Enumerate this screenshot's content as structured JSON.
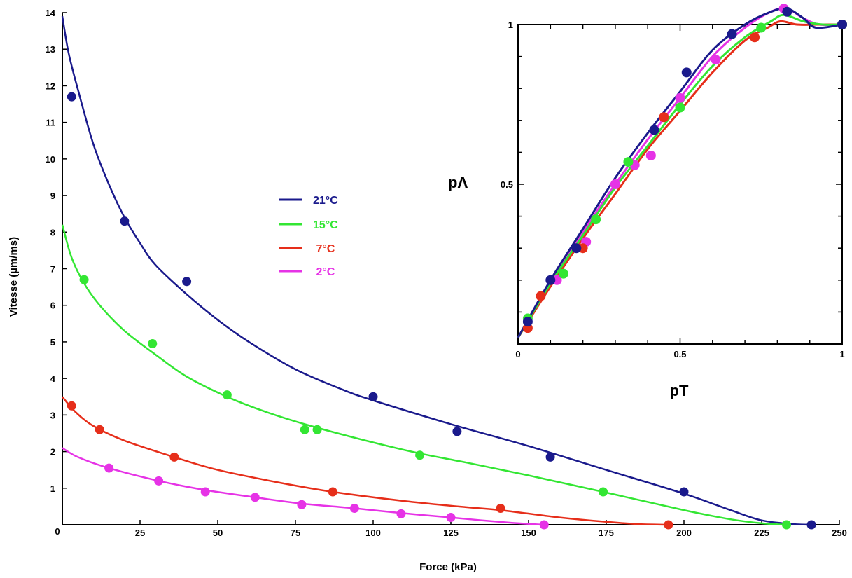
{
  "chart_data": [
    {
      "type": "line",
      "xlabel": "Force (kPa)",
      "ylabel": "Vitesse (µm/ms)",
      "xlim": [
        0,
        250
      ],
      "ylim": [
        0,
        14
      ],
      "x_ticks": [
        0,
        25,
        50,
        75,
        100,
        125,
        150,
        175,
        200,
        225,
        250
      ],
      "y_ticks": [
        1,
        2,
        3,
        4,
        5,
        6,
        7,
        8,
        9,
        10,
        11,
        12,
        13,
        14
      ],
      "x_tick_labels": [
        "0",
        "25",
        "50",
        "75",
        "100",
        "125",
        "150",
        "175",
        "200",
        "225",
        "250"
      ],
      "y_tick_labels": [
        "1",
        "2",
        "3",
        "4",
        "5",
        "6",
        "7",
        "8",
        "9",
        "10",
        "11",
        "12",
        "13",
        "14"
      ],
      "legend_position": "center",
      "series": [
        {
          "name": "21°C",
          "color": "#1a1a8c",
          "points": [
            [
              3,
              11.7
            ],
            [
              20,
              8.3
            ],
            [
              40,
              6.65
            ],
            [
              100,
              3.5
            ],
            [
              127,
              2.55
            ],
            [
              157,
              1.85
            ],
            [
              200,
              0.9
            ],
            [
              241,
              0.0
            ]
          ],
          "curve": [
            [
              0,
              13.9
            ],
            [
              2,
              12.9
            ],
            [
              5,
              11.9
            ],
            [
              10,
              10.4
            ],
            [
              15,
              9.3
            ],
            [
              20,
              8.4
            ],
            [
              25,
              7.7
            ],
            [
              30,
              7.1
            ],
            [
              40,
              6.3
            ],
            [
              50,
              5.6
            ],
            [
              60,
              5.0
            ],
            [
              75,
              4.25
            ],
            [
              90,
              3.7
            ],
            [
              100,
              3.4
            ],
            [
              125,
              2.75
            ],
            [
              150,
              2.15
            ],
            [
              175,
              1.5
            ],
            [
              200,
              0.85
            ],
            [
              215,
              0.4
            ],
            [
              225,
              0.12
            ],
            [
              235,
              0.02
            ],
            [
              241,
              0.0
            ]
          ]
        },
        {
          "name": "15°C",
          "color": "#33e633",
          "points": [
            [
              7,
              6.7
            ],
            [
              29,
              4.95
            ],
            [
              53,
              3.55
            ],
            [
              78,
              2.6
            ],
            [
              82,
              2.6
            ],
            [
              115,
              1.9
            ],
            [
              174,
              0.9
            ],
            [
              233,
              0.0
            ]
          ],
          "curve": [
            [
              0,
              8.2
            ],
            [
              3,
              7.3
            ],
            [
              7,
              6.6
            ],
            [
              12,
              6.0
            ],
            [
              20,
              5.3
            ],
            [
              30,
              4.65
            ],
            [
              40,
              4.05
            ],
            [
              53,
              3.5
            ],
            [
              65,
              3.1
            ],
            [
              80,
              2.7
            ],
            [
              100,
              2.25
            ],
            [
              115,
              1.95
            ],
            [
              130,
              1.7
            ],
            [
              150,
              1.35
            ],
            [
              174,
              0.9
            ],
            [
              200,
              0.4
            ],
            [
              215,
              0.15
            ],
            [
              225,
              0.04
            ],
            [
              233,
              0.0
            ]
          ]
        },
        {
          "name": "7°C",
          "color": "#e62e1a",
          "points": [
            [
              3,
              3.25
            ],
            [
              12,
              2.6
            ],
            [
              36,
              1.85
            ],
            [
              87,
              0.9
            ],
            [
              141,
              0.45
            ],
            [
              195,
              0.0
            ]
          ],
          "curve": [
            [
              0,
              3.5
            ],
            [
              4,
              3.1
            ],
            [
              10,
              2.7
            ],
            [
              20,
              2.3
            ],
            [
              36,
              1.85
            ],
            [
              50,
              1.5
            ],
            [
              70,
              1.15
            ],
            [
              87,
              0.9
            ],
            [
              110,
              0.65
            ],
            [
              130,
              0.48
            ],
            [
              141,
              0.4
            ],
            [
              160,
              0.2
            ],
            [
              175,
              0.08
            ],
            [
              185,
              0.02
            ],
            [
              195,
              0.0
            ]
          ]
        },
        {
          "name": "2°C",
          "color": "#e633e6",
          "points": [
            [
              15,
              1.55
            ],
            [
              31,
              1.2
            ],
            [
              46,
              0.9
            ],
            [
              62,
              0.75
            ],
            [
              77,
              0.55
            ],
            [
              94,
              0.45
            ],
            [
              109,
              0.3
            ],
            [
              125,
              0.2
            ],
            [
              155,
              0.0
            ]
          ],
          "curve": [
            [
              0,
              2.1
            ],
            [
              5,
              1.85
            ],
            [
              15,
              1.55
            ],
            [
              31,
              1.2
            ],
            [
              46,
              0.95
            ],
            [
              62,
              0.75
            ],
            [
              77,
              0.58
            ],
            [
              94,
              0.45
            ],
            [
              109,
              0.32
            ],
            [
              125,
              0.2
            ],
            [
              135,
              0.12
            ],
            [
              145,
              0.05
            ],
            [
              155,
              0.0
            ]
          ]
        }
      ]
    },
    {
      "type": "line",
      "xlabel": "pT",
      "ylabel": "pΛ",
      "xlim": [
        0,
        1
      ],
      "ylim": [
        0,
        1
      ],
      "x_tick_labels": [
        "0",
        "0.5",
        "1"
      ],
      "y_tick_labels": [
        "0.5",
        "1"
      ],
      "series": [
        {
          "color": "#1a1a8c",
          "points": [
            [
              0.03,
              0.07
            ],
            [
              0.1,
              0.2
            ],
            [
              0.18,
              0.3
            ],
            [
              0.42,
              0.67
            ],
            [
              0.52,
              0.85
            ],
            [
              0.66,
              0.97
            ],
            [
              0.83,
              1.04
            ],
            [
              1.0,
              1.0
            ]
          ],
          "curve": [
            [
              0.0,
              0.02
            ],
            [
              0.1,
              0.2
            ],
            [
              0.2,
              0.36
            ],
            [
              0.3,
              0.52
            ],
            [
              0.4,
              0.66
            ],
            [
              0.5,
              0.79
            ],
            [
              0.6,
              0.92
            ],
            [
              0.7,
              1.0
            ],
            [
              0.78,
              1.04
            ],
            [
              0.83,
              1.05
            ],
            [
              0.88,
              1.02
            ],
            [
              0.92,
              0.99
            ],
            [
              1.0,
              1.0
            ]
          ]
        },
        {
          "color": "#33e633",
          "points": [
            [
              0.03,
              0.08
            ],
            [
              0.14,
              0.22
            ],
            [
              0.24,
              0.39
            ],
            [
              0.34,
              0.57
            ],
            [
              0.5,
              0.74
            ],
            [
              0.75,
              0.99
            ],
            [
              1.0,
              1.0
            ]
          ],
          "curve": [
            [
              0.0,
              0.02
            ],
            [
              0.1,
              0.19
            ],
            [
              0.2,
              0.34
            ],
            [
              0.3,
              0.49
            ],
            [
              0.4,
              0.62
            ],
            [
              0.5,
              0.75
            ],
            [
              0.6,
              0.87
            ],
            [
              0.7,
              0.96
            ],
            [
              0.78,
              1.01
            ],
            [
              0.82,
              1.03
            ],
            [
              0.88,
              1.01
            ],
            [
              0.94,
              1.0
            ],
            [
              1.0,
              1.0
            ]
          ]
        },
        {
          "color": "#e62e1a",
          "points": [
            [
              0.03,
              0.05
            ],
            [
              0.07,
              0.15
            ],
            [
              0.2,
              0.3
            ],
            [
              0.45,
              0.71
            ],
            [
              0.73,
              0.96
            ],
            [
              1.0,
              1.0
            ]
          ],
          "curve": [
            [
              0.0,
              0.02
            ],
            [
              0.1,
              0.18
            ],
            [
              0.2,
              0.33
            ],
            [
              0.3,
              0.47
            ],
            [
              0.4,
              0.61
            ],
            [
              0.5,
              0.73
            ],
            [
              0.6,
              0.85
            ],
            [
              0.7,
              0.95
            ],
            [
              0.77,
              0.99
            ],
            [
              0.81,
              1.01
            ],
            [
              0.86,
              1.0
            ],
            [
              0.92,
              1.0
            ],
            [
              1.0,
              1.0
            ]
          ]
        },
        {
          "color": "#e633e6",
          "points": [
            [
              0.12,
              0.2
            ],
            [
              0.21,
              0.32
            ],
            [
              0.3,
              0.5
            ],
            [
              0.36,
              0.56
            ],
            [
              0.41,
              0.59
            ],
            [
              0.5,
              0.77
            ],
            [
              0.61,
              0.89
            ],
            [
              0.82,
              1.05
            ],
            [
              1.0,
              1.0
            ]
          ],
          "curve": [
            [
              0.0,
              0.02
            ],
            [
              0.1,
              0.19
            ],
            [
              0.2,
              0.35
            ],
            [
              0.3,
              0.5
            ],
            [
              0.4,
              0.64
            ],
            [
              0.5,
              0.77
            ],
            [
              0.6,
              0.9
            ],
            [
              0.7,
              0.99
            ],
            [
              0.78,
              1.04
            ],
            [
              0.83,
              1.05
            ],
            [
              0.88,
              1.02
            ],
            [
              0.93,
              1.0
            ],
            [
              1.0,
              1.0
            ]
          ]
        }
      ]
    }
  ],
  "legend": [
    {
      "label": "21°C",
      "color": "#1a1a8c"
    },
    {
      "label": "15°C",
      "color": "#33e633"
    },
    {
      "label": " 7°C",
      "color": "#e62e1a"
    },
    {
      "label": " 2°C",
      "color": "#e633e6"
    }
  ]
}
